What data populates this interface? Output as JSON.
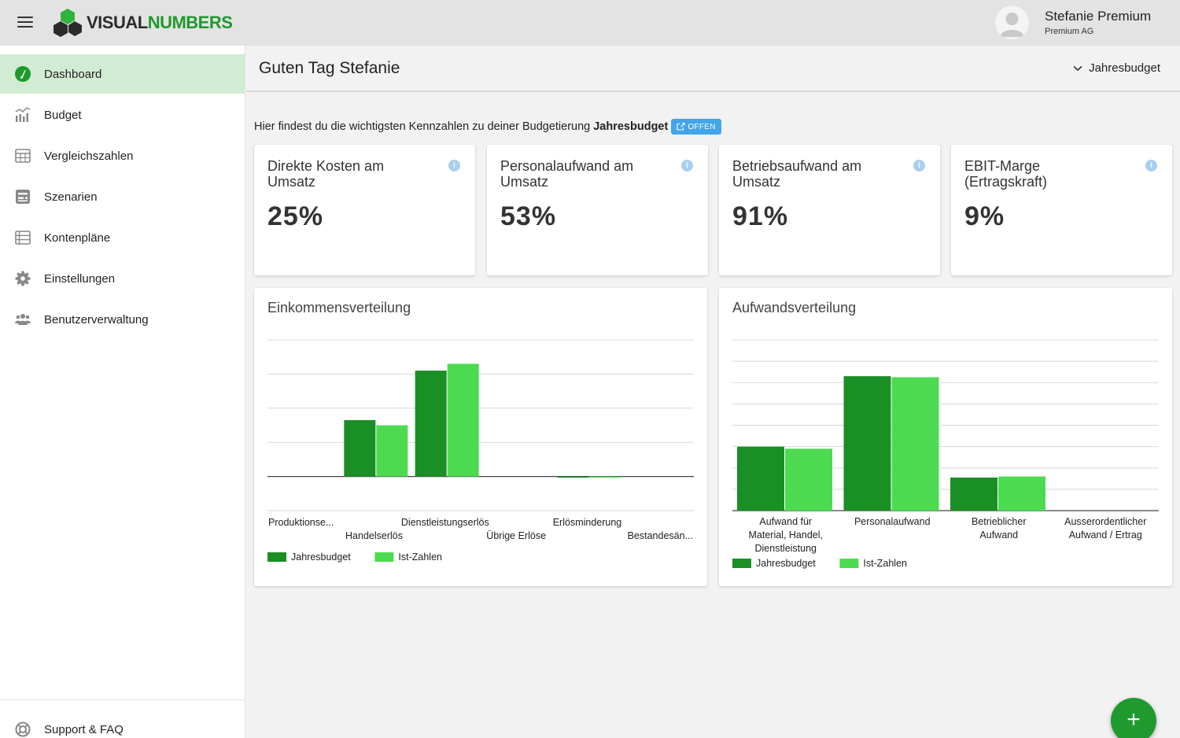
{
  "app": {
    "logo_part1": "VISUAL",
    "logo_part2": "NUMBERS",
    "colors": {
      "brand_dark": "#1a8f25",
      "brand_light": "#4cdb50",
      "accent": "#42a5e8"
    }
  },
  "user": {
    "name": "Stefanie Premium",
    "company": "Premium AG"
  },
  "sidebar": {
    "items": [
      {
        "label": "Dashboard",
        "icon": "dashboard-icon",
        "active": true
      },
      {
        "label": "Budget",
        "icon": "chart-icon"
      },
      {
        "label": "Vergleichszahlen",
        "icon": "table-icon"
      },
      {
        "label": "Szenarien",
        "icon": "scenario-icon"
      },
      {
        "label": "Kontenpläne",
        "icon": "list-icon"
      },
      {
        "label": "Einstellungen",
        "icon": "gear-icon"
      },
      {
        "label": "Benutzerverwaltung",
        "icon": "users-icon"
      }
    ],
    "support": {
      "label": "Support & FAQ",
      "icon": "lifebuoy-icon"
    }
  },
  "header": {
    "title": "Guten Tag Stefanie",
    "budget_select": "Jahresbudget"
  },
  "intro": {
    "text": "Hier findest du die wichtigsten Kennzahlen zu deiner Budgetierung",
    "budget_name": "Jahresbudget",
    "badge": "OFFEN"
  },
  "kpis": [
    {
      "title": "Direkte Kosten am Umsatz",
      "value": "25%"
    },
    {
      "title": "Personalaufwand am Umsatz",
      "value": "53%"
    },
    {
      "title": "Betriebsaufwand am Umsatz",
      "value": "91%"
    },
    {
      "title": "EBIT-Marge (Ertragskraft)",
      "value": "9%"
    }
  ],
  "chart_data": [
    {
      "type": "bar",
      "title": "Einkommensverteilung",
      "categories": [
        "Produktionse...",
        "Handelserlös",
        "Dienstleistungserlös",
        "Übrige Erlöse",
        "Erlösminderung",
        "Bestandesän..."
      ],
      "series": [
        {
          "name": "Jahresbudget",
          "values": [
            0,
            1.65,
            3.1,
            0,
            -0.03,
            0
          ]
        },
        {
          "name": "Ist-Zahlen",
          "values": [
            0,
            1.5,
            3.3,
            0,
            -0.03,
            0
          ]
        }
      ],
      "ylim": [
        -1,
        4
      ],
      "grid": true,
      "legend": "bottom-left"
    },
    {
      "type": "bar",
      "title": "Aufwandsverteilung",
      "categories": [
        "Aufwand für Material, Handel, Dienstleistung",
        "Personalaufwand",
        "Betrieblicher Aufwand",
        "Ausserordentlicher Aufwand / Ertrag"
      ],
      "series": [
        {
          "name": "Jahresbudget",
          "values": [
            3.0,
            6.3,
            1.55,
            0
          ]
        },
        {
          "name": "Ist-Zahlen",
          "values": [
            2.9,
            6.25,
            1.6,
            0
          ]
        }
      ],
      "ylim": [
        0,
        8
      ],
      "grid": true,
      "legend": "bottom-left"
    }
  ],
  "fab": {
    "label": "+"
  }
}
